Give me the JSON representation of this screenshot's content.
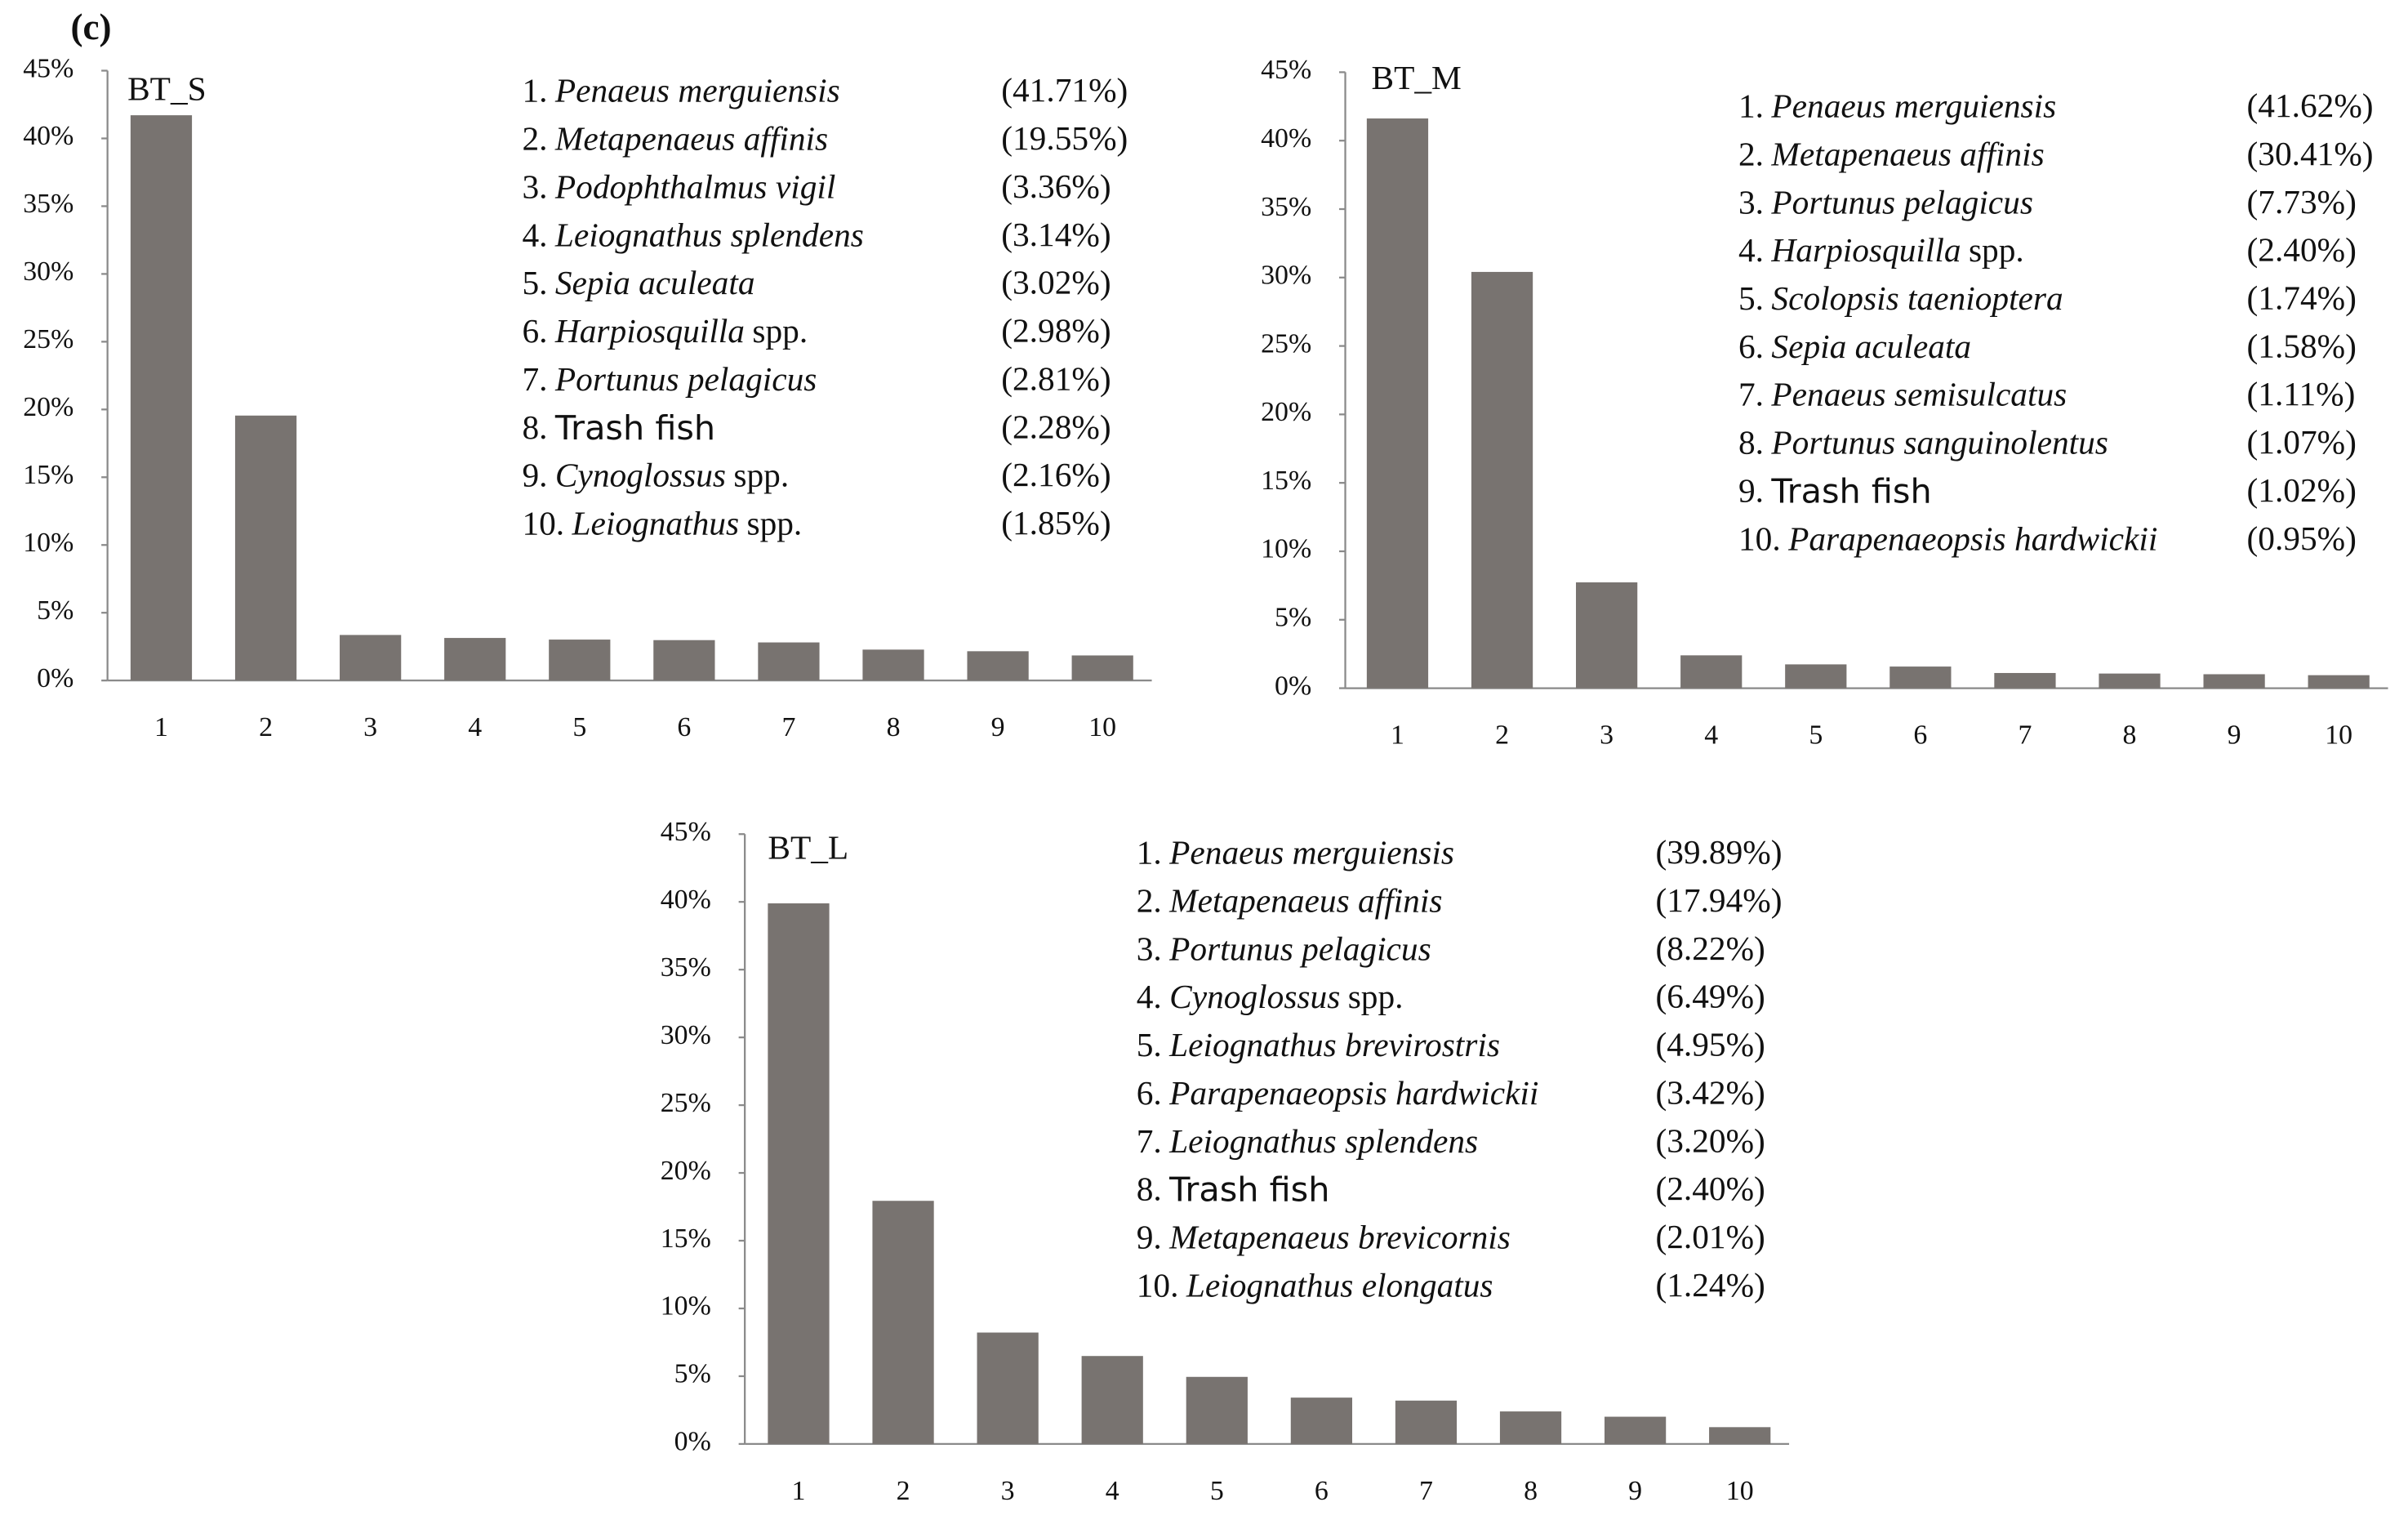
{
  "panel_label": "(c)",
  "chart_data": [
    {
      "type": "bar",
      "title": "BT_S",
      "color": "#787370",
      "categories": [
        "1",
        "2",
        "3",
        "4",
        "5",
        "6",
        "7",
        "8",
        "9",
        "10"
      ],
      "values": [
        41.71,
        19.55,
        3.36,
        3.14,
        3.02,
        2.98,
        2.81,
        2.28,
        2.16,
        1.85
      ],
      "value_labels": [
        "(41.71%)",
        "(19.55%)",
        "(3.36%)",
        "(3.14%)",
        "(3.02%)",
        "(2.98%)",
        "(2.81%)",
        "(2.28%)",
        "(2.16%)",
        "(1.85%)"
      ],
      "items": [
        {
          "num": "1.",
          "italic": "Penaeus merguiensis"
        },
        {
          "num": "2.",
          "italic": "Metapenaeus affinis"
        },
        {
          "num": "3.",
          "italic": "Podophthalmus vigil"
        },
        {
          "num": "4.",
          "italic": "Leiognathus splendens"
        },
        {
          "num": "5.",
          "italic": "Sepia aculeata"
        },
        {
          "num": "6.",
          "italic": "Harpiosquilla",
          "roman": "spp."
        },
        {
          "num": "7.",
          "italic": "Portunus pelagicus"
        },
        {
          "num": "8.",
          "roman": "Trash fish"
        },
        {
          "num": "9.",
          "italic": "Cynoglossus",
          "roman": "spp."
        },
        {
          "num": "10.",
          "italic": "Leiognathus",
          "roman": "spp."
        }
      ],
      "ylim": [
        0,
        45
      ],
      "yticks": [
        {
          "value": 0,
          "label": "0%"
        },
        {
          "value": 5,
          "label": "5%"
        },
        {
          "value": 10,
          "label": "10%"
        },
        {
          "value": 15,
          "label": "15%"
        },
        {
          "value": 20,
          "label": "20%"
        },
        {
          "value": 25,
          "label": "25%"
        },
        {
          "value": 30,
          "label": "30%"
        },
        {
          "value": 35,
          "label": "35%"
        },
        {
          "value": 40,
          "label": "40%"
        },
        {
          "value": 45,
          "label": "45%"
        }
      ]
    },
    {
      "type": "bar",
      "title": "BT_M",
      "color": "#787370",
      "categories": [
        "1",
        "2",
        "3",
        "4",
        "5",
        "6",
        "7",
        "8",
        "9",
        "10"
      ],
      "values": [
        41.62,
        30.41,
        7.73,
        2.4,
        1.74,
        1.58,
        1.11,
        1.07,
        1.02,
        0.95
      ],
      "value_labels": [
        "(41.62%)",
        "(30.41%)",
        "(7.73%)",
        "(2.40%)",
        "(1.74%)",
        "(1.58%)",
        "(1.11%)",
        "(1.07%)",
        "(1.02%)",
        "(0.95%)"
      ],
      "items": [
        {
          "num": "1.",
          "italic": "Penaeus merguiensis"
        },
        {
          "num": "2.",
          "italic": "Metapenaeus affinis"
        },
        {
          "num": "3.",
          "italic": "Portunus pelagicus"
        },
        {
          "num": "4.",
          "italic": "Harpiosquilla",
          "roman": "spp."
        },
        {
          "num": "5.",
          "italic": "Scolopsis taenioptera"
        },
        {
          "num": "6.",
          "italic": "Sepia aculeata"
        },
        {
          "num": "7.",
          "italic": "Penaeus semisulcatus"
        },
        {
          "num": "8.",
          "italic": "Portunus sanguinolentus"
        },
        {
          "num": "9.",
          "roman": "Trash fish"
        },
        {
          "num": "10.",
          "italic": "Parapenaeopsis hardwickii"
        }
      ],
      "ylim": [
        0,
        45
      ],
      "yticks": [
        {
          "value": 0,
          "label": "0%"
        },
        {
          "value": 5,
          "label": "5%"
        },
        {
          "value": 10,
          "label": "10%"
        },
        {
          "value": 15,
          "label": "15%"
        },
        {
          "value": 20,
          "label": "20%"
        },
        {
          "value": 25,
          "label": "25%"
        },
        {
          "value": 30,
          "label": "30%"
        },
        {
          "value": 35,
          "label": "35%"
        },
        {
          "value": 40,
          "label": "40%"
        },
        {
          "value": 45,
          "label": "45%"
        }
      ]
    },
    {
      "type": "bar",
      "title": "BT_L",
      "color": "#787370",
      "categories": [
        "1",
        "2",
        "3",
        "4",
        "5",
        "6",
        "7",
        "8",
        "9",
        "10"
      ],
      "values": [
        39.89,
        17.94,
        8.22,
        6.49,
        4.95,
        3.42,
        3.2,
        2.4,
        2.01,
        1.24
      ],
      "value_labels": [
        "(39.89%)",
        "(17.94%)",
        "(8.22%)",
        "(6.49%)",
        "(4.95%)",
        "(3.42%)",
        "(3.20%)",
        "(2.40%)",
        "(2.01%)",
        "(1.24%)"
      ],
      "items": [
        {
          "num": "1.",
          "italic": "Penaeus merguiensis"
        },
        {
          "num": "2.",
          "italic": "Metapenaeus affinis"
        },
        {
          "num": "3.",
          "italic": "Portunus pelagicus"
        },
        {
          "num": "4.",
          "italic": "Cynoglossus",
          "roman": "spp."
        },
        {
          "num": "5.",
          "italic": "Leiognathus brevirostris"
        },
        {
          "num": "6.",
          "italic": "Parapenaeopsis hardwickii"
        },
        {
          "num": "7.",
          "italic": "Leiognathus splendens"
        },
        {
          "num": "8.",
          "roman": "Trash fish"
        },
        {
          "num": "9.",
          "italic": "Metapenaeus brevicornis"
        },
        {
          "num": "10.",
          "italic": "Leiognathus elongatus"
        }
      ],
      "ylim": [
        0,
        45
      ],
      "yticks": [
        {
          "value": 0,
          "label": "0%"
        },
        {
          "value": 5,
          "label": "5%"
        },
        {
          "value": 10,
          "label": "10%"
        },
        {
          "value": 15,
          "label": "15%"
        },
        {
          "value": 20,
          "label": "20%"
        },
        {
          "value": 25,
          "label": "25%"
        },
        {
          "value": 30,
          "label": "30%"
        },
        {
          "value": 35,
          "label": "35%"
        },
        {
          "value": 40,
          "label": "40%"
        },
        {
          "value": 45,
          "label": "45%"
        }
      ]
    }
  ]
}
